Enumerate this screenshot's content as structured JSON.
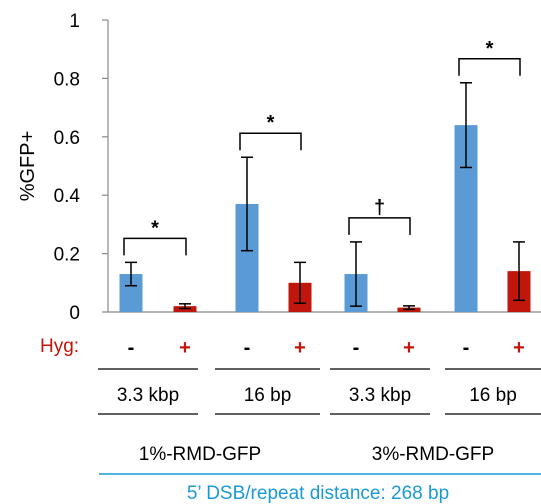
{
  "chart_data": {
    "type": "bar",
    "ylabel": "%GFP+",
    "ylim": [
      0,
      1
    ],
    "yticks": [
      "0",
      "0.2",
      "0.4",
      "0.6",
      "0.8",
      "1"
    ],
    "grid": false,
    "hyg_label": "Hyg:",
    "colors": {
      "minus": "#5b9bd5",
      "plus": "#c0160c",
      "accent": "#1a9ad6"
    },
    "groups": [
      {
        "spacing": "3.3 kbp",
        "bars": [
          {
            "hyg": "-",
            "value": 0.13,
            "error": 0.04
          },
          {
            "hyg": "+",
            "value": 0.02,
            "error": 0.008
          }
        ],
        "significance": "*"
      },
      {
        "spacing": "16 bp",
        "bars": [
          {
            "hyg": "-",
            "value": 0.37,
            "error": 0.16
          },
          {
            "hyg": "+",
            "value": 0.1,
            "error": 0.07
          }
        ],
        "significance": "*"
      },
      {
        "spacing": "3.3 kbp",
        "bars": [
          {
            "hyg": "-",
            "value": 0.13,
            "error": 0.11
          },
          {
            "hyg": "+",
            "value": 0.015,
            "error": 0.006
          }
        ],
        "significance": "†"
      },
      {
        "spacing": "16 bp",
        "bars": [
          {
            "hyg": "-",
            "value": 0.64,
            "error": 0.145
          },
          {
            "hyg": "+",
            "value": 0.14,
            "error": 0.1
          }
        ],
        "significance": "*"
      }
    ],
    "reporters": [
      "1%-RMD-GFP",
      "3%-RMD-GFP"
    ],
    "footer": "5’ DSB/repeat distance: 268 bp"
  }
}
